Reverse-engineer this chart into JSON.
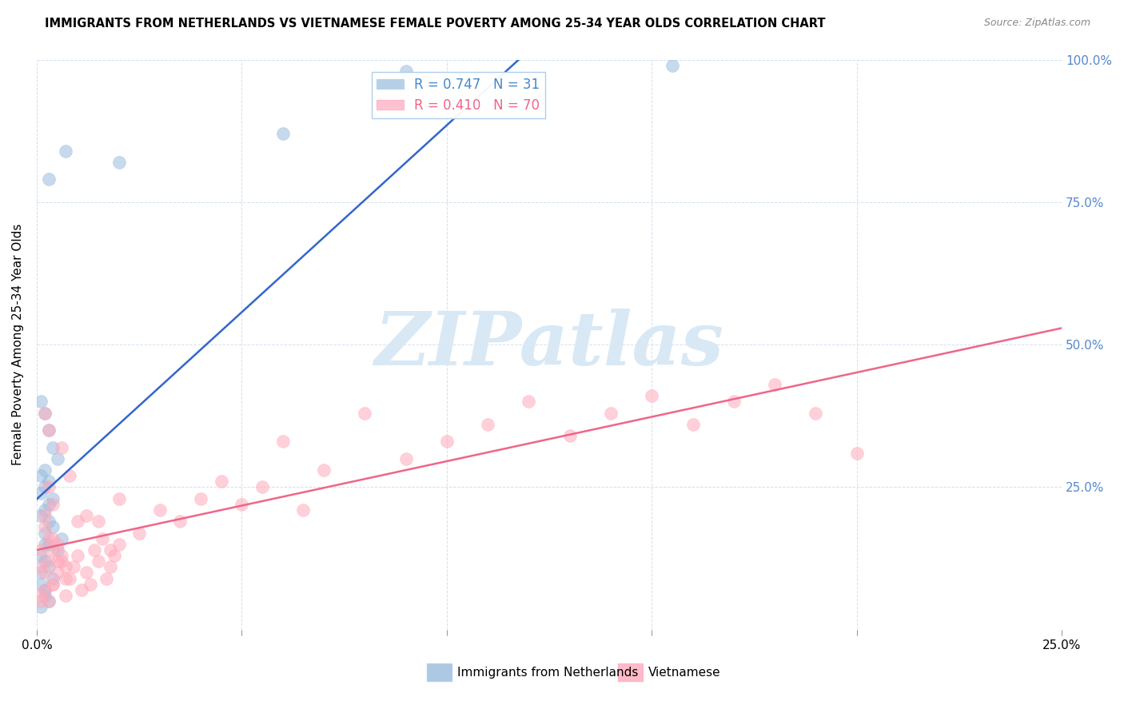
{
  "title": "IMMIGRANTS FROM NETHERLANDS VS VIETNAMESE FEMALE POVERTY AMONG 25-34 YEAR OLDS CORRELATION CHART",
  "source": "Source: ZipAtlas.com",
  "ylabel": "Female Poverty Among 25-34 Year Olds",
  "xlim": [
    0.0,
    0.25
  ],
  "ylim": [
    0.0,
    1.0
  ],
  "blue_R": 0.747,
  "blue_N": 31,
  "pink_R": 0.41,
  "pink_N": 70,
  "blue_color": "#99BBDD",
  "pink_color": "#FFAABB",
  "blue_line_color": "#3366CC",
  "pink_line_color": "#EE6688",
  "blue_label_color": "#4488CC",
  "pink_label_color": "#EE6688",
  "right_ytick_color": "#5588CC",
  "watermark_color": "#D8E8F5",
  "watermark": "ZIPatlas",
  "legend_label_blue": "Immigrants from Netherlands",
  "legend_label_pink": "Vietnamese",
  "blue_x": [
    0.001,
    0.002,
    0.001,
    0.003,
    0.002,
    0.004,
    0.001,
    0.003,
    0.002,
    0.001,
    0.005,
    0.002,
    0.006,
    0.003,
    0.002,
    0.004,
    0.003,
    0.001,
    0.002,
    0.003,
    0.004,
    0.001,
    0.002,
    0.003,
    0.001,
    0.002,
    0.005,
    0.004,
    0.003,
    0.002,
    0.001
  ],
  "blue_y": [
    0.04,
    0.06,
    0.08,
    0.05,
    0.07,
    0.09,
    0.1,
    0.11,
    0.12,
    0.13,
    0.14,
    0.15,
    0.16,
    0.15,
    0.17,
    0.18,
    0.19,
    0.2,
    0.21,
    0.22,
    0.23,
    0.24,
    0.25,
    0.26,
    0.27,
    0.28,
    0.3,
    0.32,
    0.35,
    0.38,
    0.4
  ],
  "blue_outliers_x": [
    0.003,
    0.007,
    0.02,
    0.06,
    0.09,
    0.155
  ],
  "blue_outliers_y": [
    0.79,
    0.84,
    0.82,
    0.87,
    0.98,
    0.99
  ],
  "pink_x": [
    0.001,
    0.002,
    0.001,
    0.003,
    0.002,
    0.004,
    0.003,
    0.001,
    0.005,
    0.002,
    0.006,
    0.004,
    0.007,
    0.003,
    0.005,
    0.008,
    0.004,
    0.01,
    0.006,
    0.007,
    0.002,
    0.004,
    0.003,
    0.015,
    0.012,
    0.018,
    0.02,
    0.025,
    0.03,
    0.035,
    0.04,
    0.045,
    0.05,
    0.055,
    0.06,
    0.065,
    0.07,
    0.08,
    0.09,
    0.1,
    0.11,
    0.12,
    0.13,
    0.14,
    0.15,
    0.16,
    0.17,
    0.18,
    0.19,
    0.2,
    0.001,
    0.002,
    0.003,
    0.004,
    0.005,
    0.006,
    0.007,
    0.008,
    0.009,
    0.01,
    0.011,
    0.012,
    0.013,
    0.014,
    0.015,
    0.016,
    0.017,
    0.018,
    0.019,
    0.02
  ],
  "pink_y": [
    0.05,
    0.1,
    0.14,
    0.12,
    0.18,
    0.08,
    0.16,
    0.11,
    0.15,
    0.2,
    0.13,
    0.22,
    0.09,
    0.25,
    0.12,
    0.27,
    0.14,
    0.19,
    0.32,
    0.11,
    0.38,
    0.16,
    0.35,
    0.19,
    0.2,
    0.14,
    0.23,
    0.17,
    0.21,
    0.19,
    0.23,
    0.26,
    0.22,
    0.25,
    0.33,
    0.21,
    0.28,
    0.38,
    0.3,
    0.33,
    0.36,
    0.4,
    0.34,
    0.38,
    0.41,
    0.36,
    0.4,
    0.43,
    0.38,
    0.31,
    0.06,
    0.07,
    0.05,
    0.08,
    0.1,
    0.12,
    0.06,
    0.09,
    0.11,
    0.13,
    0.07,
    0.1,
    0.08,
    0.14,
    0.12,
    0.16,
    0.09,
    0.11,
    0.13,
    0.15
  ]
}
